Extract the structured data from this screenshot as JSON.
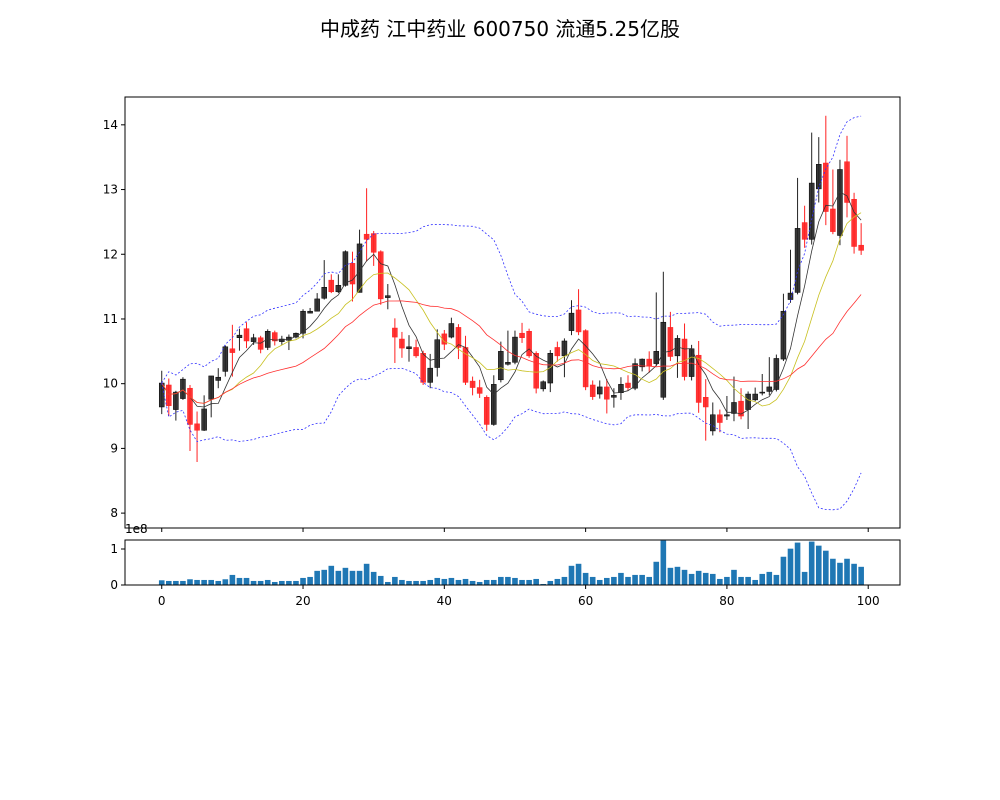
{
  "title": "中成药 江中药业 600750 流通5.25亿股",
  "chart_data": [
    {
      "type": "candlestick",
      "title": "中成药 江中药业 600750 流通5.25亿股",
      "xlim": [
        -5.2,
        104.5
      ],
      "ylim": [
        7.77,
        14.43
      ],
      "yticks": [
        "8",
        "9",
        "10",
        "11",
        "12",
        "13",
        "14"
      ],
      "xticks": [
        0,
        20,
        40,
        60,
        80,
        100
      ],
      "grid": false,
      "up_color": "#222222",
      "down_color": "#ff2020",
      "ohlc_fields": [
        "open",
        "high",
        "low",
        "close"
      ],
      "ohlc": [
        [
          9.64,
          10.2,
          9.53,
          10.01
        ],
        [
          9.98,
          10.08,
          9.5,
          9.66
        ],
        [
          9.6,
          9.89,
          9.43,
          9.87
        ],
        [
          9.77,
          10.1,
          9.75,
          10.07
        ],
        [
          9.93,
          9.98,
          8.96,
          9.37
        ],
        [
          9.38,
          9.57,
          8.79,
          9.28
        ],
        [
          9.28,
          9.82,
          9.27,
          9.61
        ],
        [
          9.76,
          10.12,
          9.48,
          10.12
        ],
        [
          10.05,
          10.24,
          9.93,
          10.1
        ],
        [
          10.19,
          10.59,
          10.11,
          10.57
        ],
        [
          10.54,
          10.91,
          10.11,
          10.48
        ],
        [
          10.71,
          10.85,
          10.51,
          10.75
        ],
        [
          10.85,
          10.95,
          10.55,
          10.66
        ],
        [
          10.65,
          10.77,
          10.6,
          10.71
        ],
        [
          10.71,
          10.74,
          10.47,
          10.53
        ],
        [
          10.56,
          10.84,
          10.52,
          10.81
        ],
        [
          10.79,
          10.82,
          10.59,
          10.66
        ],
        [
          10.65,
          10.74,
          10.6,
          10.69
        ],
        [
          10.67,
          10.76,
          10.52,
          10.72
        ],
        [
          10.72,
          10.79,
          10.7,
          10.78
        ],
        [
          10.78,
          11.15,
          10.7,
          11.12
        ],
        [
          11.09,
          11.17,
          11.09,
          11.12
        ],
        [
          11.12,
          11.4,
          11.12,
          11.31
        ],
        [
          11.32,
          11.91,
          11.3,
          11.49
        ],
        [
          11.6,
          11.69,
          11.4,
          11.42
        ],
        [
          11.42,
          11.69,
          11.4,
          11.52
        ],
        [
          11.52,
          12.06,
          11.5,
          12.04
        ],
        [
          11.86,
          12.04,
          11.27,
          11.54
        ],
        [
          11.41,
          12.38,
          11.41,
          12.16
        ],
        [
          12.31,
          13.02,
          11.89,
          12.23
        ],
        [
          12.32,
          12.36,
          11.82,
          12.03
        ],
        [
          12.04,
          12.06,
          11.22,
          11.31
        ],
        [
          11.33,
          11.54,
          11.15,
          11.36
        ],
        [
          10.86,
          11.01,
          10.32,
          10.72
        ],
        [
          10.69,
          10.8,
          10.4,
          10.55
        ],
        [
          10.54,
          10.75,
          10.34,
          10.57
        ],
        [
          10.56,
          10.68,
          10.4,
          10.43
        ],
        [
          10.47,
          10.51,
          9.98,
          10.02
        ],
        [
          10.02,
          10.46,
          9.93,
          10.24
        ],
        [
          10.25,
          10.84,
          10.11,
          10.68
        ],
        [
          10.77,
          10.83,
          10.52,
          10.61
        ],
        [
          10.72,
          11.02,
          10.7,
          10.93
        ],
        [
          10.87,
          10.92,
          10.38,
          10.56
        ],
        [
          10.56,
          10.74,
          9.98,
          10.02
        ],
        [
          10.04,
          10.11,
          9.82,
          9.94
        ],
        [
          9.94,
          10.06,
          9.78,
          9.85
        ],
        [
          9.79,
          9.82,
          9.27,
          9.37
        ],
        [
          9.37,
          10.13,
          9.35,
          9.99
        ],
        [
          10.06,
          10.65,
          10.02,
          10.5
        ],
        [
          10.3,
          10.82,
          10.28,
          10.33
        ],
        [
          10.33,
          10.82,
          10.3,
          10.72
        ],
        [
          10.78,
          10.94,
          10.63,
          10.71
        ],
        [
          10.81,
          10.85,
          10.4,
          10.43
        ],
        [
          10.47,
          10.5,
          9.85,
          9.93
        ],
        [
          9.92,
          10.05,
          9.88,
          10.03
        ],
        [
          10.01,
          10.52,
          9.87,
          10.47
        ],
        [
          10.56,
          10.65,
          10.34,
          10.43
        ],
        [
          10.43,
          10.7,
          10.1,
          10.66
        ],
        [
          10.82,
          11.29,
          10.75,
          11.09
        ],
        [
          11.14,
          11.46,
          10.75,
          10.8
        ],
        [
          10.82,
          10.84,
          9.9,
          9.95
        ],
        [
          9.98,
          10.05,
          9.75,
          9.8
        ],
        [
          9.84,
          10.05,
          9.77,
          9.95
        ],
        [
          9.95,
          10.07,
          9.54,
          9.76
        ],
        [
          9.79,
          9.93,
          9.63,
          9.82
        ],
        [
          9.86,
          10.1,
          9.75,
          9.99
        ],
        [
          10.01,
          10.13,
          9.89,
          9.94
        ],
        [
          9.93,
          10.39,
          9.9,
          10.31
        ],
        [
          10.26,
          10.39,
          10.19,
          10.38
        ],
        [
          10.38,
          10.5,
          10.17,
          10.27
        ],
        [
          10.31,
          11.41,
          10.28,
          10.5
        ],
        [
          9.79,
          11.73,
          9.75,
          10.95
        ],
        [
          10.87,
          11.11,
          10.35,
          10.42
        ],
        [
          10.43,
          10.75,
          10.09,
          10.7
        ],
        [
          10.69,
          10.93,
          10.05,
          10.11
        ],
        [
          10.11,
          10.6,
          10.05,
          10.54
        ],
        [
          10.44,
          10.66,
          9.55,
          9.71
        ],
        [
          9.79,
          10.07,
          9.12,
          9.64
        ],
        [
          9.27,
          9.71,
          9.2,
          9.52
        ],
        [
          9.52,
          9.6,
          9.25,
          9.4
        ],
        [
          9.5,
          9.81,
          9.44,
          9.52
        ],
        [
          9.54,
          10.11,
          9.42,
          9.71
        ],
        [
          9.73,
          9.93,
          9.45,
          9.5
        ],
        [
          9.6,
          9.88,
          9.3,
          9.84
        ],
        [
          9.75,
          9.94,
          9.73,
          9.84
        ],
        [
          9.86,
          10.15,
          9.82,
          9.87
        ],
        [
          9.88,
          10.41,
          9.82,
          9.95
        ],
        [
          9.91,
          10.45,
          9.88,
          10.39
        ],
        [
          10.38,
          11.39,
          10.35,
          11.12
        ],
        [
          11.3,
          12.07,
          11.25,
          11.4
        ],
        [
          11.41,
          13.18,
          11.38,
          12.4
        ],
        [
          12.49,
          12.75,
          12.1,
          12.23
        ],
        [
          12.23,
          13.88,
          12.15,
          13.1
        ],
        [
          13.01,
          13.81,
          12.8,
          13.39
        ],
        [
          13.41,
          14.14,
          12.45,
          12.66
        ],
        [
          12.7,
          13.31,
          12.31,
          12.35
        ],
        [
          12.29,
          13.46,
          12.14,
          13.31
        ],
        [
          13.43,
          13.83,
          12.57,
          12.8
        ],
        [
          12.85,
          12.95,
          12.01,
          12.12
        ],
        [
          12.14,
          12.48,
          11.99,
          12.06
        ]
      ],
      "indicators": [
        {
          "type": "ma",
          "period": 5,
          "color": "#333333"
        },
        {
          "type": "ma",
          "period": 10,
          "color": "#c8c020"
        },
        {
          "type": "ma",
          "period": 20,
          "color": "#ff3030"
        },
        {
          "type": "boll",
          "period": 20,
          "k": 2,
          "color": "#3030ff",
          "style": "dashed"
        }
      ]
    },
    {
      "type": "bar",
      "xlim": [
        -5.2,
        104.5
      ],
      "ylim": [
        0,
        125000000
      ],
      "yticks": [
        "0",
        "1"
      ],
      "offset_label": "1e8",
      "xtick_labels": [
        "0",
        "20",
        "40",
        "60",
        "80",
        "100"
      ],
      "color": "#1f77b4",
      "values": [
        13100000,
        11200000,
        11200000,
        11200000,
        15900000,
        14000000,
        14000000,
        14000000,
        11200000,
        15900000,
        28000000,
        19600000,
        19600000,
        11200000,
        11200000,
        14000000,
        8400000,
        11200000,
        11200000,
        11200000,
        19600000,
        22400000,
        39300000,
        42100000,
        53300000,
        39300000,
        47700000,
        39300000,
        39300000,
        58900000,
        36400000,
        25200000,
        8400000,
        22400000,
        14000000,
        11200000,
        11200000,
        11200000,
        14000000,
        19600000,
        16800000,
        19600000,
        14000000,
        16800000,
        11200000,
        8400000,
        14000000,
        14000000,
        22400000,
        22400000,
        19600000,
        14000000,
        14000000,
        16800000,
        2800000,
        11200000,
        16800000,
        22400000,
        53300000,
        58900000,
        33600000,
        22400000,
        14000000,
        19600000,
        22400000,
        33600000,
        22400000,
        28000000,
        28000000,
        22400000,
        64500000,
        123400000,
        47700000,
        50500000,
        42100000,
        30800000,
        39300000,
        33600000,
        30800000,
        16800000,
        22400000,
        42100000,
        22400000,
        22400000,
        14000000,
        30800000,
        36400000,
        28000000,
        78500000,
        100900000,
        117800000,
        36400000,
        120600000,
        109300000,
        95300000,
        72900000,
        61700000,
        72900000,
        58900000,
        50500000
      ]
    }
  ]
}
